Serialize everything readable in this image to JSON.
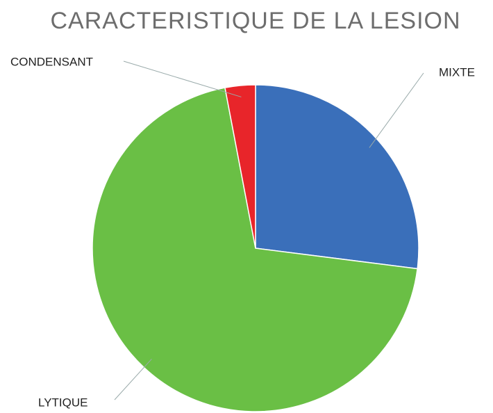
{
  "chart_data": {
    "type": "pie",
    "title": "CARACTERISTIQUE  DE LA LESION",
    "categories": [
      "MIXTE",
      "LYTIQUE",
      "CONDENSANT"
    ],
    "values": [
      27,
      70,
      3
    ],
    "colors": [
      "#3a6fba",
      "#6abf45",
      "#e8252a"
    ]
  }
}
